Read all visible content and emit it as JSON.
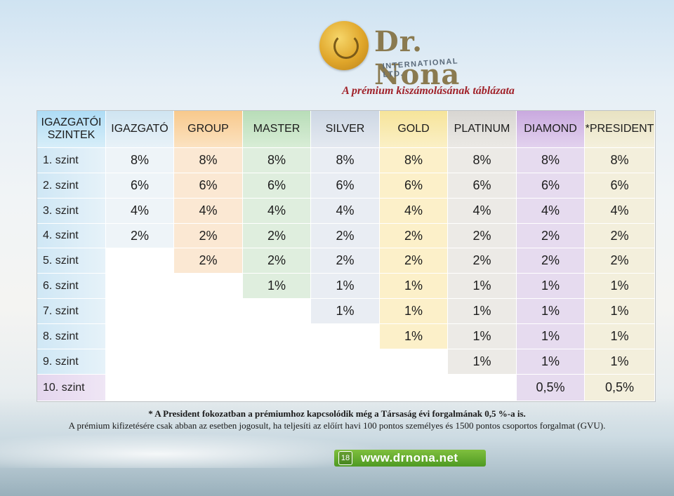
{
  "logo": {
    "brand": "Dr. Nona",
    "subtitle": "INTERNATIONAL LTD."
  },
  "title": "A prémium kiszámolásának táblázata",
  "table": {
    "columns": [
      "IGAZGATÓI SZINTEK",
      "IGAZGATÓ",
      "GROUP",
      "MASTER",
      "SILVER",
      "GOLD",
      "PLATINUM",
      "DIAMOND",
      "*PRESIDENT"
    ],
    "rows": [
      {
        "label": "1. szint",
        "values": [
          "8%",
          "8%",
          "8%",
          "8%",
          "8%",
          "8%",
          "8%",
          "8%"
        ]
      },
      {
        "label": "2. szint",
        "values": [
          "6%",
          "6%",
          "6%",
          "6%",
          "6%",
          "6%",
          "6%",
          "6%"
        ]
      },
      {
        "label": "3. szint",
        "values": [
          "4%",
          "4%",
          "4%",
          "4%",
          "4%",
          "4%",
          "4%",
          "4%"
        ]
      },
      {
        "label": "4. szint",
        "values": [
          "2%",
          "2%",
          "2%",
          "2%",
          "2%",
          "2%",
          "2%",
          "2%"
        ]
      },
      {
        "label": "5. szint",
        "values": [
          "",
          "2%",
          "2%",
          "2%",
          "2%",
          "2%",
          "2%",
          "2%"
        ]
      },
      {
        "label": "6. szint",
        "values": [
          "",
          "",
          "1%",
          "1%",
          "1%",
          "1%",
          "1%",
          "1%"
        ]
      },
      {
        "label": "7. szint",
        "values": [
          "",
          "",
          "",
          "1%",
          "1%",
          "1%",
          "1%",
          "1%"
        ]
      },
      {
        "label": "8. szint",
        "values": [
          "",
          "",
          "",
          "",
          "1%",
          "1%",
          "1%",
          "1%"
        ]
      },
      {
        "label": "9. szint",
        "values": [
          "",
          "",
          "",
          "",
          "",
          "1%",
          "1%",
          "1%"
        ]
      },
      {
        "label": "10. szint",
        "values": [
          "",
          "",
          "",
          "",
          "",
          "",
          "0,5%",
          "0,5%"
        ]
      }
    ]
  },
  "footnotes": [
    "* A President fokozatban a prémiumhoz kapcsolódik még a Társaság évi forgalmának 0,5 %-a is.",
    "A prémium kifizetésére csak abban az esetben jogosult, ha teljesíti az előírt havi 100 pontos személyes és 1500 pontos csoportos forgalmat (GVU)."
  ],
  "footer": {
    "page_number": "18",
    "website": "www.drnona.net"
  }
}
